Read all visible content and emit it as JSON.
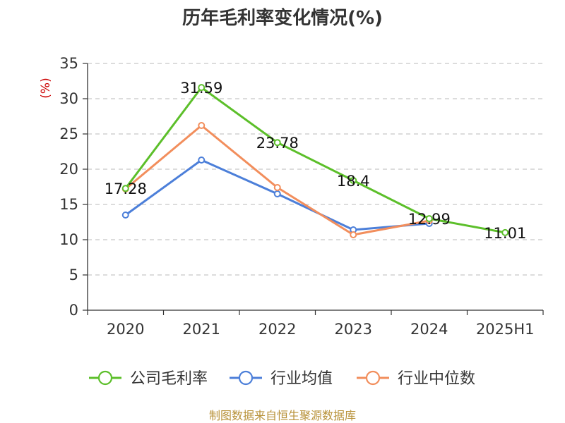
{
  "chart_data": {
    "type": "line",
    "title": "历年毛利率变化情况(%)",
    "ylabel": "(%)",
    "xlabel": "",
    "categories": [
      "2020",
      "2021",
      "2022",
      "2023",
      "2024",
      "2025H1"
    ],
    "ylim": [
      0,
      35
    ],
    "yticks": [
      0,
      5,
      10,
      15,
      20,
      25,
      30,
      35
    ],
    "grid": true,
    "legend_position": "bottom",
    "series": [
      {
        "name": "公司毛利率",
        "color": "#5cbf2a",
        "values": [
          17.28,
          31.59,
          23.78,
          18.4,
          12.99,
          11.01
        ],
        "labels": [
          "17.28",
          "31.59",
          "23.78",
          "18.4",
          "12.99",
          "11.01"
        ]
      },
      {
        "name": "行业均值",
        "color": "#4c7fd9",
        "values": [
          13.5,
          21.3,
          16.5,
          11.4,
          12.3,
          null
        ]
      },
      {
        "name": "行业中位数",
        "color": "#f28e5c",
        "values": [
          17.2,
          26.2,
          17.4,
          10.7,
          12.7,
          null
        ]
      }
    ]
  },
  "footer": {
    "source": "制图数据来自恒生聚源数据库"
  }
}
